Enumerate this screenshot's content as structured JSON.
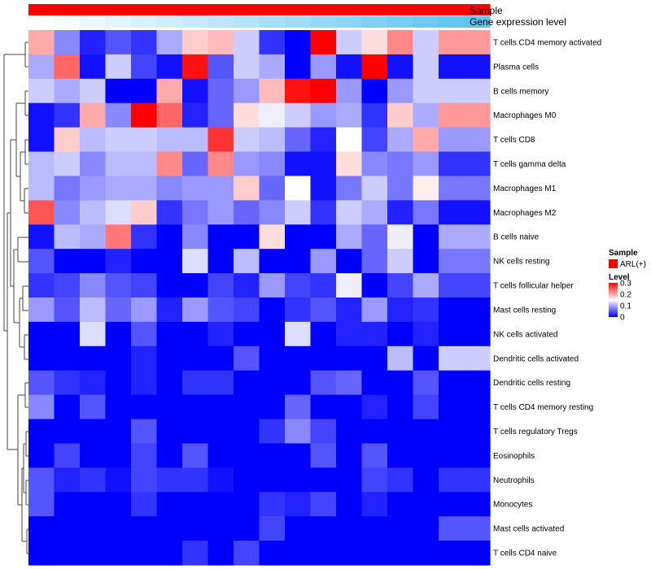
{
  "chart_data": {
    "type": "heatmap",
    "title": "",
    "columns_count": 18,
    "column_annotations": [
      {
        "name": "Sample",
        "palette": [
          "#ff0000",
          "#ff0000"
        ]
      },
      {
        "name": "Gene expression level",
        "palette": [
          "#ffffff",
          "#5bc3ee"
        ]
      }
    ],
    "rows": [
      {
        "label": "T cells CD4 memory activated",
        "values": [
          0.2,
          0.08,
          0.02,
          0.05,
          0.03,
          0.1,
          0.18,
          0.19,
          0.12,
          0.03,
          0.0,
          0.3,
          0.12,
          0.17,
          0.22,
          0.12,
          0.21,
          0.21
        ]
      },
      {
        "label": "Plasma cells",
        "values": [
          0.1,
          0.24,
          0.01,
          0.12,
          0.04,
          0.01,
          0.29,
          0.05,
          0.12,
          0.1,
          0.0,
          0.09,
          0.01,
          0.3,
          0.01,
          0.12,
          0.01,
          0.01
        ]
      },
      {
        "label": "B cells memory",
        "values": [
          0.12,
          0.1,
          0.12,
          0.0,
          0.0,
          0.2,
          0.01,
          0.06,
          0.09,
          0.19,
          0.29,
          0.3,
          0.09,
          0.0,
          0.09,
          0.12,
          0.12,
          0.12
        ]
      },
      {
        "label": "Macrophages M0",
        "values": [
          0.01,
          0.03,
          0.2,
          0.08,
          0.3,
          0.24,
          0.02,
          0.06,
          0.17,
          0.14,
          0.12,
          0.09,
          0.1,
          0.03,
          0.18,
          0.1,
          0.21,
          0.21
        ]
      },
      {
        "label": "T cells CD8",
        "values": [
          0.01,
          0.18,
          0.11,
          0.12,
          0.12,
          0.11,
          0.11,
          0.27,
          0.12,
          0.11,
          0.06,
          0.02,
          0.15,
          0.04,
          0.1,
          0.2,
          0.09,
          0.09
        ]
      },
      {
        "label": "T cells gamma delta",
        "values": [
          0.11,
          0.12,
          0.08,
          0.11,
          0.11,
          0.22,
          0.06,
          0.22,
          0.09,
          0.08,
          0.01,
          0.01,
          0.17,
          0.08,
          0.07,
          0.09,
          0.03,
          0.03
        ]
      },
      {
        "label": "Macrophages M1",
        "values": [
          0.11,
          0.07,
          0.09,
          0.1,
          0.1,
          0.08,
          0.09,
          0.09,
          0.18,
          0.06,
          0.15,
          0.01,
          0.07,
          0.12,
          0.07,
          0.16,
          0.07,
          0.07
        ]
      },
      {
        "label": "Macrophages M2",
        "values": [
          0.25,
          0.08,
          0.11,
          0.13,
          0.18,
          0.03,
          0.07,
          0.09,
          0.06,
          0.08,
          0.12,
          0.03,
          0.12,
          0.1,
          0.02,
          0.07,
          0.01,
          0.01
        ]
      },
      {
        "label": "B cells naive",
        "values": [
          0.01,
          0.11,
          0.1,
          0.23,
          0.03,
          0.0,
          0.08,
          0.0,
          0.0,
          0.17,
          0.0,
          0.0,
          0.1,
          0.06,
          0.14,
          0.0,
          0.1,
          0.1
        ]
      },
      {
        "label": "NK cells resting",
        "values": [
          0.05,
          0.0,
          0.0,
          0.02,
          0.0,
          0.0,
          0.13,
          0.0,
          0.11,
          0.0,
          0.0,
          0.09,
          0.0,
          0.06,
          0.12,
          0.0,
          0.07,
          0.07
        ]
      },
      {
        "label": "T cells follicular helper",
        "values": [
          0.03,
          0.04,
          0.08,
          0.05,
          0.04,
          0.0,
          0.0,
          0.04,
          0.02,
          0.09,
          0.04,
          0.03,
          0.14,
          0.0,
          0.04,
          0.1,
          0.04,
          0.04
        ]
      },
      {
        "label": "Mast cells resting",
        "values": [
          0.09,
          0.05,
          0.11,
          0.06,
          0.09,
          0.02,
          0.09,
          0.05,
          0.04,
          0.0,
          0.03,
          0.05,
          0.02,
          0.09,
          0.02,
          0.03,
          0.0,
          0.0
        ]
      },
      {
        "label": "NK cells activated",
        "values": [
          0.0,
          0.0,
          0.13,
          0.0,
          0.05,
          0.0,
          0.0,
          0.02,
          0.0,
          0.0,
          0.13,
          0.0,
          0.02,
          0.02,
          0.0,
          0.02,
          0.0,
          0.0
        ]
      },
      {
        "label": "Dendritic cells activated",
        "values": [
          0.0,
          0.0,
          0.0,
          0.0,
          0.02,
          0.0,
          0.0,
          0.0,
          0.05,
          0.0,
          0.0,
          0.0,
          0.0,
          0.0,
          0.11,
          0.0,
          0.12,
          0.12
        ]
      },
      {
        "label": "Dendritic cells resting",
        "values": [
          0.05,
          0.03,
          0.02,
          0.0,
          0.02,
          0.0,
          0.03,
          0.03,
          0.0,
          0.0,
          0.0,
          0.05,
          0.06,
          0.0,
          0.0,
          0.05,
          0.0,
          0.0
        ]
      },
      {
        "label": "T cells CD4 memory resting",
        "values": [
          0.08,
          0.0,
          0.05,
          0.0,
          0.0,
          0.0,
          0.0,
          0.0,
          0.0,
          0.0,
          0.06,
          0.0,
          0.0,
          0.02,
          0.0,
          0.04,
          0.0,
          0.0
        ]
      },
      {
        "label": "T cells regulatory  Tregs",
        "values": [
          0.0,
          0.0,
          0.0,
          0.0,
          0.05,
          0.0,
          0.0,
          0.0,
          0.0,
          0.03,
          0.08,
          0.04,
          0.0,
          0.0,
          0.0,
          0.0,
          0.0,
          0.0
        ]
      },
      {
        "label": "Eosinophils",
        "values": [
          0.0,
          0.04,
          0.0,
          0.0,
          0.04,
          0.0,
          0.05,
          0.0,
          0.0,
          0.0,
          0.0,
          0.05,
          0.0,
          0.05,
          0.0,
          0.0,
          0.0,
          0.0
        ]
      },
      {
        "label": "Neutrophils",
        "values": [
          0.05,
          0.02,
          0.03,
          0.01,
          0.04,
          0.03,
          0.03,
          0.01,
          0.0,
          0.0,
          0.0,
          0.0,
          0.0,
          0.04,
          0.03,
          0.0,
          0.03,
          0.03
        ]
      },
      {
        "label": "Monocytes",
        "values": [
          0.05,
          0.0,
          0.0,
          0.0,
          0.03,
          0.0,
          0.0,
          0.0,
          0.0,
          0.03,
          0.02,
          0.04,
          0.0,
          0.02,
          0.0,
          0.0,
          0.0,
          0.0
        ]
      },
      {
        "label": "Mast cells activated",
        "values": [
          0.0,
          0.0,
          0.0,
          0.0,
          0.0,
          0.0,
          0.0,
          0.0,
          0.0,
          0.04,
          0.0,
          0.0,
          0.0,
          0.0,
          0.0,
          0.0,
          0.05,
          0.05
        ]
      },
      {
        "label": "T cells CD4 naive",
        "values": [
          0.0,
          0.0,
          0.0,
          0.0,
          0.0,
          0.0,
          0.03,
          0.0,
          0.04,
          0.0,
          0.0,
          0.0,
          0.0,
          0.0,
          0.0,
          0.0,
          0.0,
          0.0
        ]
      }
    ],
    "color_scale": {
      "min": 0,
      "mid": 0.15,
      "max": 0.3,
      "low_color": "#0000ff",
      "mid_color": "#ffffff",
      "high_color": "#ff0000"
    },
    "legend": {
      "sample_title": "Sample",
      "sample_items": [
        {
          "label": "ARL(+)",
          "color": "#ff0000"
        }
      ],
      "level_title": "Level",
      "level_ticks": [
        "0.3",
        "0.2",
        "0.1",
        "0"
      ],
      "level_tick_values": [
        0.3,
        0.2,
        0.1,
        0
      ]
    },
    "dendrogram": "row clustering, left side"
  }
}
